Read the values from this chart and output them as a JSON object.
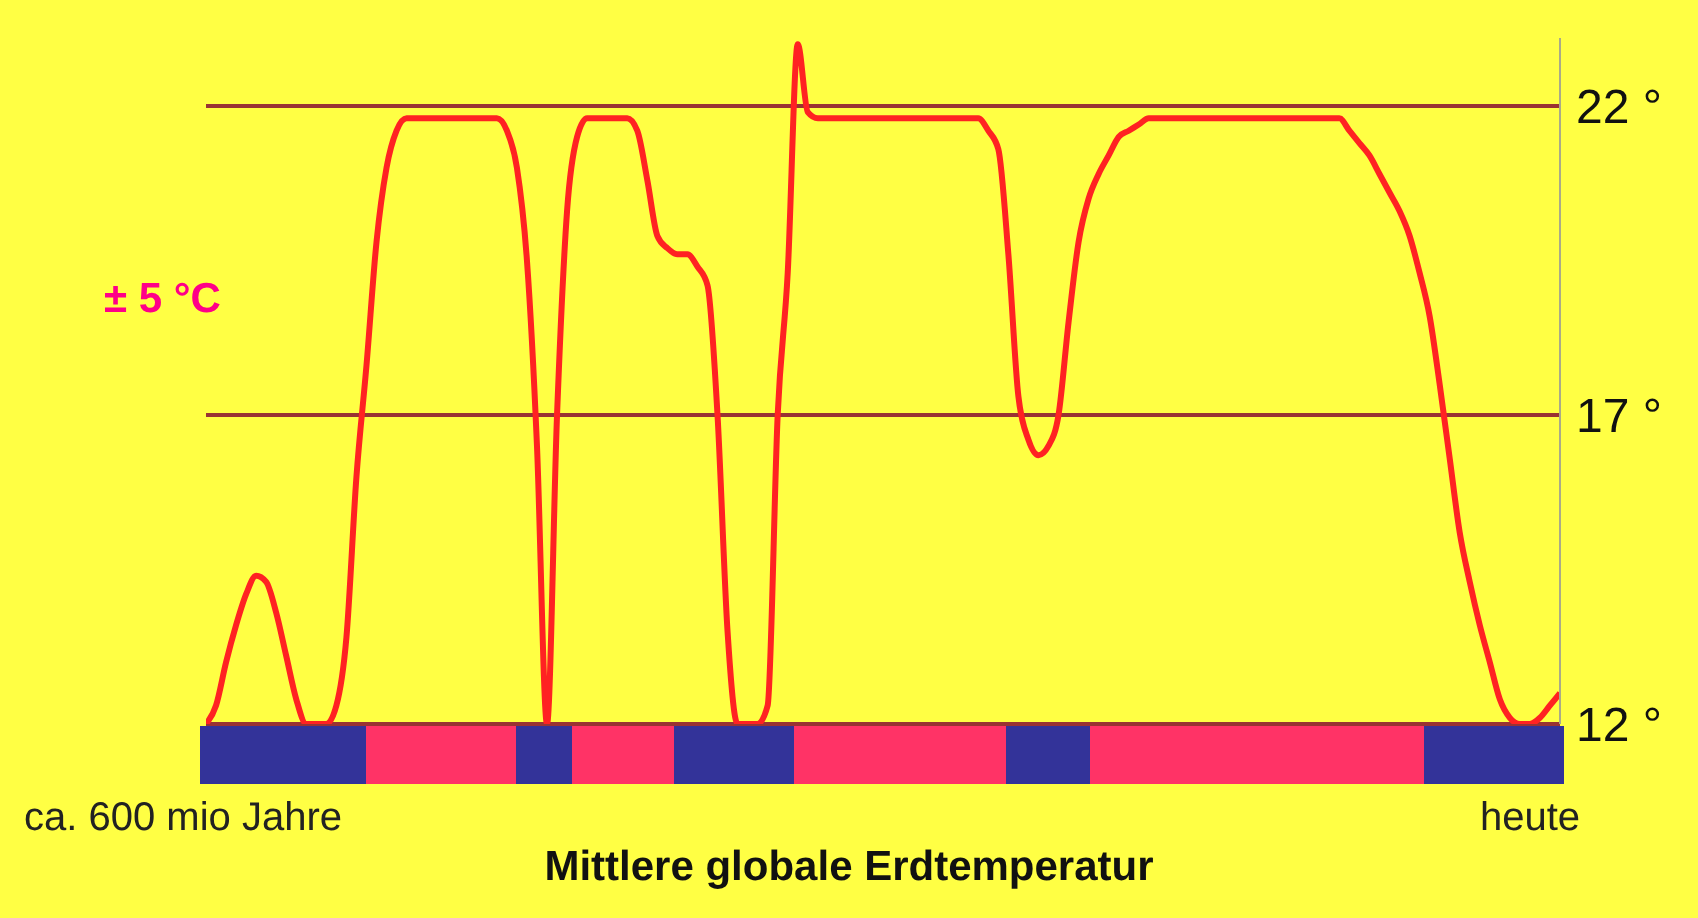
{
  "chart_data": {
    "type": "line",
    "title": "Mittlere globale Erdtemperatur",
    "annotations": [
      "± 5 °C",
      "ca. 600 mio Jahre",
      "heute"
    ],
    "categories": [
      null,
      null,
      null,
      null,
      null,
      null,
      null,
      null,
      null,
      null,
      null,
      null,
      null,
      null,
      null,
      null,
      null,
      null,
      null,
      null,
      null,
      null,
      null,
      null,
      null,
      null,
      null,
      null,
      null,
      null,
      null,
      null,
      null,
      null,
      null,
      null,
      null,
      null,
      null,
      null,
      null,
      null,
      null,
      null,
      null,
      null,
      null,
      null,
      null,
      null,
      null,
      null,
      null,
      null,
      null,
      null,
      null,
      null,
      null,
      null,
      null,
      null,
      null,
      null,
      null,
      null,
      null,
      null,
      null,
      null,
      null,
      null,
      null,
      null,
      null,
      null,
      null,
      null,
      null,
      null,
      null,
      null,
      null,
      null,
      null,
      null,
      null,
      null,
      null,
      null,
      null,
      null,
      null,
      null,
      null,
      null,
      null,
      null,
      null,
      null,
      null,
      null,
      null,
      null,
      null,
      null,
      null,
      null,
      null,
      null,
      null,
      null,
      null,
      null,
      null,
      null,
      null,
      null,
      null,
      null,
      null,
      null,
      null,
      null,
      null,
      null,
      null,
      null,
      null,
      null,
      null,
      null,
      null,
      null,
      null,
      null
    ],
    "series": [
      {
        "color": "#ff2222",
        "values": [
          12.0,
          12.3,
          13.0,
          13.6,
          14.1,
          14.4,
          14.3,
          13.8,
          13.1,
          12.4,
          12.0,
          12.0,
          12.0,
          12.3,
          13.4,
          16.0,
          17.8,
          19.8,
          21.0,
          21.6,
          21.8,
          21.8,
          21.8,
          21.8,
          21.8,
          21.8,
          21.8,
          21.8,
          21.8,
          21.8,
          21.6,
          21.0,
          19.5,
          16.5,
          12.0,
          17.0,
          20.3,
          21.5,
          21.8,
          21.8,
          21.8,
          21.8,
          21.8,
          21.6,
          20.8,
          19.9,
          19.7,
          19.6,
          19.6,
          19.4,
          19.1,
          17.0,
          13.5,
          12.0,
          12.0,
          12.0,
          12.3,
          17.0,
          19.3,
          23.0,
          21.9,
          21.8,
          21.8,
          21.8,
          21.8,
          21.8,
          21.8,
          21.8,
          21.8,
          21.8,
          21.8,
          21.8,
          21.8,
          21.8,
          21.8,
          21.8,
          21.8,
          21.8,
          21.6,
          21.3,
          19.6,
          17.3,
          16.6,
          16.35,
          16.5,
          17.0,
          18.5,
          19.8,
          20.5,
          20.9,
          21.2,
          21.5,
          21.6,
          21.7,
          21.8,
          21.8,
          21.8,
          21.8,
          21.8,
          21.8,
          21.8,
          21.8,
          21.8,
          21.8,
          21.8,
          21.8,
          21.8,
          21.8,
          21.8,
          21.8,
          21.8,
          21.8,
          21.8,
          21.8,
          21.6,
          21.4,
          21.2,
          20.9,
          20.6,
          20.3,
          19.9,
          19.3,
          18.6,
          17.5,
          16.3,
          15.1,
          14.3,
          13.6,
          13.0,
          12.4,
          12.1,
          12.0,
          12.0,
          12.1,
          12.3,
          12.5
        ]
      }
    ],
    "ylim": [
      12,
      23.1
    ],
    "yticks": [
      {
        "value": 12,
        "label": "12 °"
      },
      {
        "value": 17,
        "label": "17 °"
      },
      {
        "value": 22,
        "label": "22 °"
      }
    ],
    "grid": "y",
    "marker": "none",
    "line_style": "solid"
  }
}
